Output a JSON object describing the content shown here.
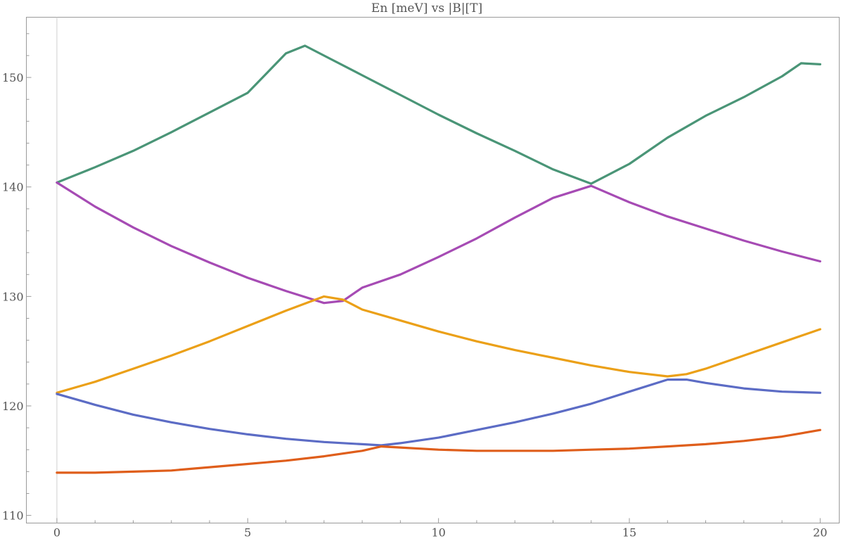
{
  "chart_data": {
    "type": "line",
    "title": "En [meV] vs |B|[T]",
    "xlabel": "",
    "ylabel": "",
    "xlim": [
      -0.8,
      20.5
    ],
    "ylim": [
      109.3,
      155.5
    ],
    "xticks": [
      0,
      5,
      10,
      15,
      20
    ],
    "yticks": [
      110,
      120,
      130,
      140,
      150
    ],
    "xtick_labels": [
      "0",
      "5",
      "10",
      "15",
      "20"
    ],
    "ytick_labels": [
      "110",
      "120",
      "130",
      "140",
      "150"
    ],
    "grid": false,
    "legend": "none",
    "series": [
      {
        "color": "#4a9577",
        "points": [
          [
            0,
            140.4
          ],
          [
            1,
            141.8
          ],
          [
            2,
            143.3
          ],
          [
            3,
            145.0
          ],
          [
            4,
            146.8
          ],
          [
            5,
            148.6
          ],
          [
            6,
            152.2
          ],
          [
            6.5,
            152.9
          ],
          [
            7,
            152.0
          ],
          [
            8,
            150.2
          ],
          [
            9,
            148.4
          ],
          [
            10,
            146.6
          ],
          [
            11,
            144.9
          ],
          [
            12,
            143.3
          ],
          [
            13,
            141.6
          ],
          [
            14,
            140.3
          ],
          [
            15,
            142.1
          ],
          [
            16,
            144.5
          ],
          [
            17,
            146.5
          ],
          [
            18,
            148.2
          ],
          [
            19,
            150.1
          ],
          [
            19.5,
            151.3
          ],
          [
            20,
            151.2
          ]
        ]
      },
      {
        "color": "#a64bb4",
        "points": [
          [
            0,
            140.4
          ],
          [
            1,
            138.2
          ],
          [
            2,
            136.3
          ],
          [
            3,
            134.6
          ],
          [
            4,
            133.1
          ],
          [
            5,
            131.7
          ],
          [
            6,
            130.5
          ],
          [
            7,
            129.4
          ],
          [
            7.5,
            129.6
          ],
          [
            8,
            130.8
          ],
          [
            9,
            132.0
          ],
          [
            10,
            133.6
          ],
          [
            11,
            135.3
          ],
          [
            12,
            137.2
          ],
          [
            13,
            139.0
          ],
          [
            14,
            140.1
          ],
          [
            15,
            138.6
          ],
          [
            16,
            137.3
          ],
          [
            17,
            136.2
          ],
          [
            18,
            135.1
          ],
          [
            19,
            134.1
          ],
          [
            20,
            133.2
          ]
        ]
      },
      {
        "color": "#eba018",
        "points": [
          [
            0,
            121.2
          ],
          [
            1,
            122.2
          ],
          [
            2,
            123.4
          ],
          [
            3,
            124.6
          ],
          [
            4,
            125.9
          ],
          [
            5,
            127.3
          ],
          [
            6,
            128.7
          ],
          [
            7,
            130.0
          ],
          [
            7.5,
            129.7
          ],
          [
            8,
            128.8
          ],
          [
            9,
            127.8
          ],
          [
            10,
            126.8
          ],
          [
            11,
            125.9
          ],
          [
            12,
            125.1
          ],
          [
            13,
            124.4
          ],
          [
            14,
            123.7
          ],
          [
            15,
            123.1
          ],
          [
            16,
            122.7
          ],
          [
            16.5,
            122.9
          ],
          [
            17,
            123.4
          ],
          [
            18,
            124.6
          ],
          [
            19,
            125.8
          ],
          [
            20,
            127.0
          ]
        ]
      },
      {
        "color": "#5c6cc5",
        "points": [
          [
            0,
            121.1
          ],
          [
            1,
            120.1
          ],
          [
            2,
            119.2
          ],
          [
            3,
            118.5
          ],
          [
            4,
            117.9
          ],
          [
            5,
            117.4
          ],
          [
            6,
            117.0
          ],
          [
            7,
            116.7
          ],
          [
            8,
            116.5
          ],
          [
            8.5,
            116.4
          ],
          [
            9,
            116.6
          ],
          [
            10,
            117.1
          ],
          [
            11,
            117.8
          ],
          [
            12,
            118.5
          ],
          [
            13,
            119.3
          ],
          [
            14,
            120.2
          ],
          [
            15,
            121.3
          ],
          [
            16,
            122.4
          ],
          [
            16.5,
            122.4
          ],
          [
            17,
            122.1
          ],
          [
            18,
            121.6
          ],
          [
            19,
            121.3
          ],
          [
            20,
            121.2
          ]
        ]
      },
      {
        "color": "#df5e1b",
        "points": [
          [
            0,
            113.9
          ],
          [
            1,
            113.9
          ],
          [
            2,
            114.0
          ],
          [
            3,
            114.1
          ],
          [
            4,
            114.4
          ],
          [
            5,
            114.7
          ],
          [
            6,
            115.0
          ],
          [
            7,
            115.4
          ],
          [
            8,
            115.9
          ],
          [
            8.5,
            116.3
          ],
          [
            9,
            116.2
          ],
          [
            10,
            116.0
          ],
          [
            11,
            115.9
          ],
          [
            12,
            115.9
          ],
          [
            13,
            115.9
          ],
          [
            14,
            116.0
          ],
          [
            15,
            116.1
          ],
          [
            16,
            116.3
          ],
          [
            17,
            116.5
          ],
          [
            18,
            116.8
          ],
          [
            19,
            117.2
          ],
          [
            20,
            117.8
          ]
        ]
      }
    ]
  }
}
